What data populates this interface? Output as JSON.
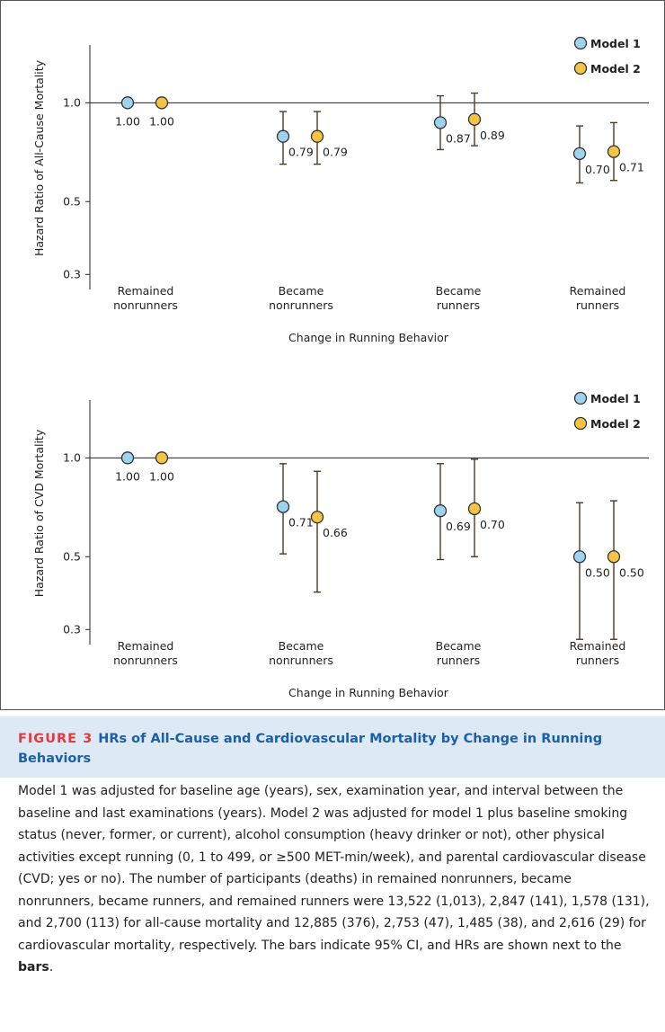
{
  "chart_data": [
    {
      "type": "scatter",
      "ylabel": "Hazard Ratio of All-Cause Mortality",
      "xlabel": "Change in Running Behavior",
      "categories": [
        [
          "Remained",
          "nonrunners"
        ],
        [
          "Became",
          "nonrunners"
        ],
        [
          "Became",
          "runners"
        ],
        [
          "Remained",
          "runners"
        ]
      ],
      "log_y": true,
      "ylim": [
        0.27,
        1.5
      ],
      "yticks": [
        0.3,
        0.5,
        {
          "value": 1,
          "label": "1.0"
        }
      ],
      "reference_line": 1,
      "legend": "top-right",
      "series": [
        {
          "name": "Model 1",
          "color": "#9dd3ee",
          "values": [
            1,
            0.79,
            0.87,
            0.7
          ],
          "value_labels": [
            "1.00",
            "0.79",
            "0.87",
            "0.70"
          ],
          "ci_low": [
            null,
            0.65,
            0.72,
            0.57
          ],
          "ci_high": [
            null,
            0.94,
            1.05,
            0.85
          ]
        },
        {
          "name": "Model 2",
          "color": "#f6c445",
          "values": [
            1,
            0.79,
            0.89,
            0.71
          ],
          "value_labels": [
            "1.00",
            "0.79",
            "0.89",
            "0.71"
          ],
          "ci_low": [
            null,
            0.65,
            0.74,
            0.58
          ],
          "ci_high": [
            null,
            0.94,
            1.07,
            0.87
          ]
        }
      ]
    },
    {
      "type": "scatter",
      "ylabel": "Hazard Ratio of CVD Mortality",
      "xlabel": "Change in Running Behavior",
      "categories": [
        [
          "Remained",
          "nonrunners"
        ],
        [
          "Became",
          "nonrunners"
        ],
        [
          "Became",
          "runners"
        ],
        [
          "Remained",
          "runners"
        ]
      ],
      "log_y": true,
      "ylim": [
        0.27,
        1.5
      ],
      "yticks": [
        0.3,
        0.5,
        {
          "value": 1,
          "label": "1.0"
        }
      ],
      "reference_line": 1,
      "legend": "top-right",
      "series": [
        {
          "name": "Model 1",
          "color": "#9dd3ee",
          "values": [
            1,
            0.71,
            0.69,
            0.5
          ],
          "value_labels": [
            "1.00",
            "0.71",
            "0.69",
            "0.50"
          ],
          "ci_low": [
            null,
            0.51,
            0.49,
            0.28
          ],
          "ci_high": [
            null,
            0.96,
            0.96,
            0.73
          ]
        },
        {
          "name": "Model 2",
          "color": "#f6c445",
          "values": [
            1,
            0.66,
            0.7,
            0.5
          ],
          "value_labels": [
            "1.00",
            "0.66",
            "0.70",
            "0.50"
          ],
          "ci_low": [
            null,
            0.39,
            0.5,
            0.28
          ],
          "ci_high": [
            null,
            0.91,
            0.99,
            0.74
          ]
        }
      ]
    }
  ],
  "caption": {
    "label": "FIGURE 3",
    "title": "HRs of All-Cause and Cardiovascular Mortality by Change in Running Behaviors",
    "body": "Model 1 was adjusted for baseline age (years), sex, examination year, and interval between the baseline and last examinations (years). Model 2 was adjusted for model 1 plus baseline smoking status (never, former, or current), alcohol consumption (heavy drinker or not), other physical activities except running (0, 1 to 499, or ≥500 MET-min/week), and parental cardiovascular disease (CVD; yes or no). The number of participants (deaths) in remained nonrunners, became nonrunners, became runners, and remained runners were 13,522 (1,013), 2,847 (141), 1,578 (131), and 2,700 (113) for all-cause mortality and 12,885 (376), 2,753 (47), 1,485 (38), and 2,616 (29) for cardiovascular mortality, respectively. The bars indicate 95% CI, and HRs are shown next to the ",
    "body_bold": "bars",
    "body_end": "."
  }
}
